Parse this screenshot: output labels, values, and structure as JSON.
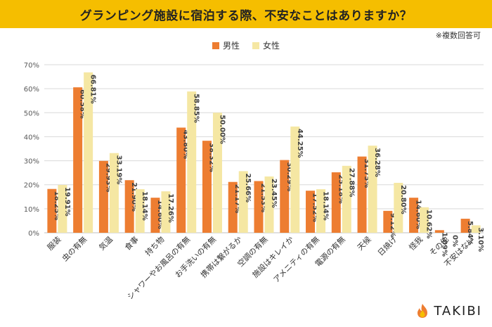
{
  "title": "グランピング施設に宿泊する際、不安なことはありますか？",
  "note": "※複数回答可",
  "colors": {
    "male": "#ed7d31",
    "female": "#f5e7a3",
    "title_bg": "#f5be00",
    "grid": "#d9d9d9"
  },
  "logo": {
    "text": "TAKIBI",
    "icon": "flame-icon"
  },
  "chart_data": {
    "type": "bar",
    "title": "グランピング施設に宿泊する際、不安なことはありますか？",
    "xlabel": "",
    "ylabel": "",
    "ylim": [
      0,
      70
    ],
    "yticks": [
      "0%",
      "10%",
      "20%",
      "30%",
      "40%",
      "50%",
      "60%",
      "70%"
    ],
    "legend_position": "top-center",
    "categories": [
      "服装",
      "虫の有無",
      "気温",
      "食事",
      "持ち物",
      "シャワーやお風呂の有無",
      "お手洗いの有無",
      "携帯は繋がるか",
      "空調の有無",
      "施設はキレイか",
      "アメニティの有無",
      "電源の有無",
      "天候",
      "日焼け",
      "怪我",
      "その他",
      "不安はない"
    ],
    "series": [
      {
        "name": "男性",
        "values": [
          18.25,
          60.58,
          29.93,
          21.9,
          14.6,
          43.8,
          38.32,
          21.17,
          21.53,
          30.29,
          17.52,
          25.18,
          31.75,
          9.12,
          14.6,
          1.09,
          5.84
        ],
        "labels": [
          "18.25%",
          "60.58%",
          "29.93%",
          "21.90%",
          "14.60%",
          "43.80%",
          "38.32%",
          "21.17%",
          "21.53%",
          "30.29%",
          "17.52%",
          "25.18%",
          "31.75%",
          "9.12%",
          "14.60%",
          "1.09%",
          "5.84%"
        ]
      },
      {
        "name": "女性",
        "values": [
          19.91,
          66.81,
          33.19,
          18.14,
          17.26,
          58.85,
          50.0,
          25.66,
          23.45,
          44.25,
          18.14,
          27.88,
          36.28,
          20.8,
          10.62,
          0,
          3.1
        ],
        "labels": [
          "19.91%",
          "66.81%",
          "33.19%",
          "18.14%",
          "17.26%",
          "58.85%",
          "50.00%",
          "25.66%",
          "23.45%",
          "44.25%",
          "18.14%",
          "27.88%",
          "36.28%",
          "20.80%",
          "10.62%",
          "0%",
          "3.10%"
        ]
      }
    ]
  }
}
